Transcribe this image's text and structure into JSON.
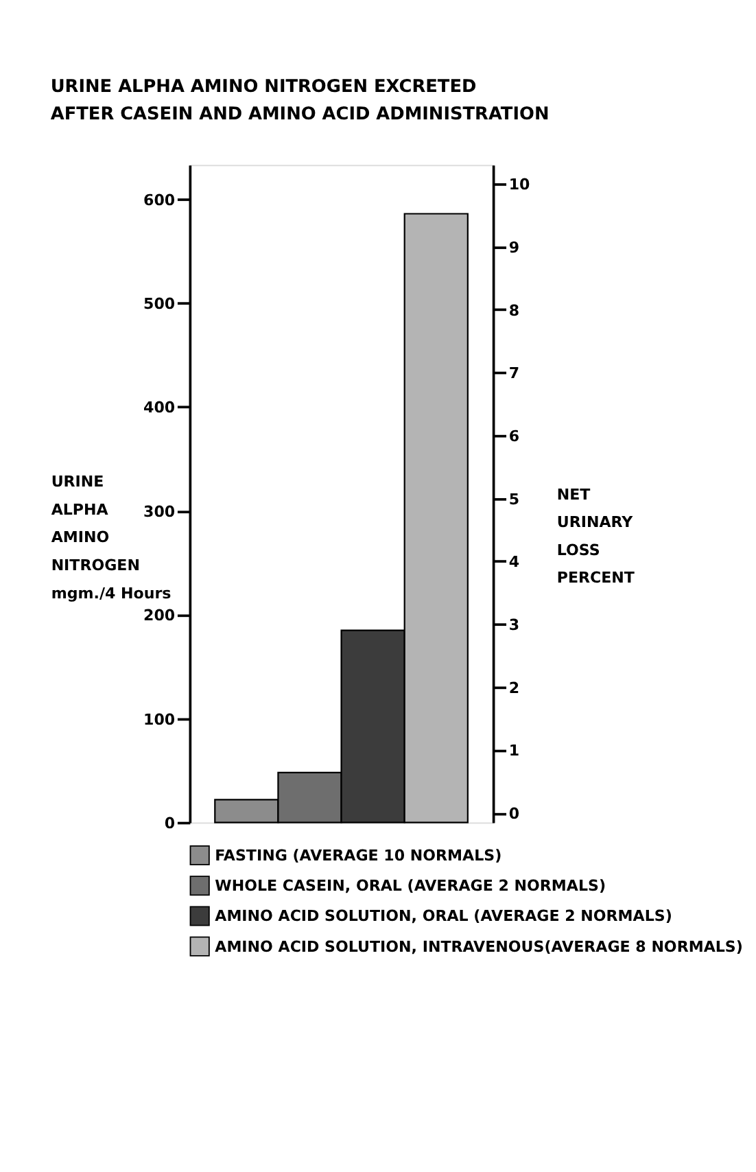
{
  "chart_data": {
    "type": "bar",
    "title": "URINE ALPHA AMINO NITROGEN EXCRETED\nAFTER CASEIN AND AMINO ACID ADMINISTRATION",
    "ylabel": "URINE\nALPHA\nAMINO\nNITROGEN\nmgm./4 Hours",
    "y2label": "NET\nURINARY\nLOSS\nPERCENT",
    "categories": [
      null,
      null,
      null,
      null
    ],
    "stacked": true,
    "series": [
      {
        "name": "FASTING (AVERAGE 10 NORMALS)",
        "color": "#8c8c8c",
        "values": [
          22,
          null,
          null,
          null
        ]
      },
      {
        "name": "WHOLE CASEIN, ORAL (AVERAGE 2 NORMALS)",
        "color": "#6e6e6e",
        "values": [
          null,
          48,
          null,
          null
        ]
      },
      {
        "name": "AMINO ACID SOLUTION, ORAL (AVERAGE 2 NORMALS)",
        "color": "#3c3c3c",
        "values": [
          null,
          null,
          185,
          null
        ]
      },
      {
        "name": "AMINO ACID SOLUTION, INTRAVENOUS(AVERAGE 8 NORMALS)",
        "color": "#b4b4b4",
        "values": [
          null,
          null,
          null,
          586
        ]
      }
    ],
    "ylim": [
      0,
      633
    ],
    "yticks": [
      0,
      100,
      200,
      300,
      400,
      500,
      600
    ],
    "y2lim": [
      -0.15,
      10.3
    ],
    "y2ticks": [
      0,
      1,
      2,
      3,
      4,
      5,
      6,
      7,
      8,
      9,
      10
    ],
    "tick_labels": "y",
    "grid": false,
    "legend": "bottom"
  }
}
